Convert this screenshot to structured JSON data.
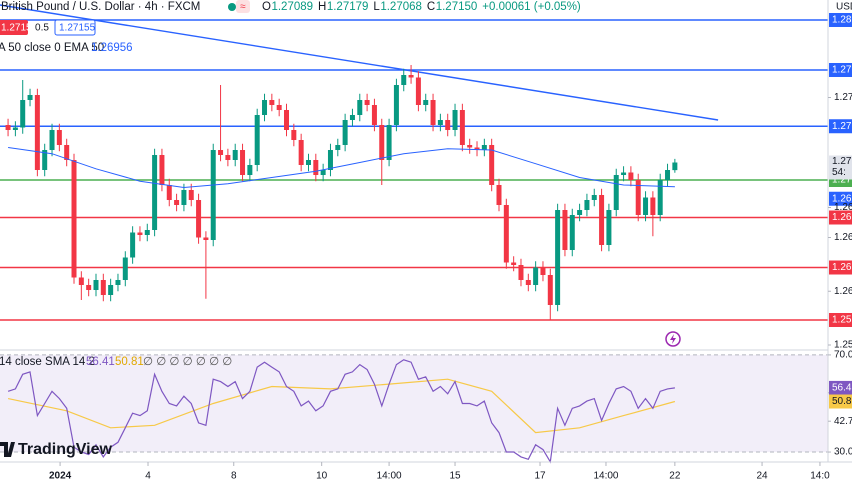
{
  "header": {
    "symbol": "British Pound / U.S. Dollar · 4h · FXCM",
    "ohlc_letters": [
      "O",
      "H",
      "L",
      "C"
    ],
    "ohlc": [
      "1.27089",
      "1.27179",
      "1.27068",
      "1.27150"
    ],
    "change": "+0.00061 (+0.05%)",
    "sell": "1.27150",
    "spread": "0.5",
    "buy": "1.27155",
    "ema_legend": "A 50 close 0 EMA 50",
    "ema_value": "1.26956",
    "currency": "USD",
    "logo": "TradingView"
  },
  "chart_data": {
    "type": "candlestick",
    "xlim": [
      -1.1,
      111.9
    ],
    "ylim": [
      1.2565,
      1.2845
    ],
    "xticks": [
      {
        "value": 7.1,
        "label": "2024"
      },
      {
        "value": 19.1,
        "label": "4"
      },
      {
        "value": 30.8,
        "label": "8"
      },
      {
        "value": 42.8,
        "label": "10"
      },
      {
        "value": 52,
        "label": "14:00"
      },
      {
        "value": 61,
        "label": "15"
      },
      {
        "value": 72.6,
        "label": "17"
      },
      {
        "value": 81.6,
        "label": "14:00"
      },
      {
        "value": 91,
        "label": "22"
      },
      {
        "value": 102.9,
        "label": "24"
      },
      {
        "value": 110.8,
        "label": "14:0"
      }
    ],
    "yticks": [
      {
        "value": 1.2767,
        "label": "1.27"
      },
      {
        "value": 1.2679,
        "label": "1.26"
      },
      {
        "value": 1.2655,
        "label": "1.26"
      },
      {
        "value": 1.2612,
        "label": "1.26"
      },
      {
        "value": 1.2569,
        "label": "1.25"
      }
    ],
    "up_color": "#089981",
    "down_color": "#f23645",
    "open": [
      1.2745,
      1.2741,
      1.2743,
      1.2765,
      1.2769,
      1.2709,
      1.2725,
      1.2741,
      1.2729,
      1.2717,
      1.2623,
      1.2617,
      1.2613,
      1.2621,
      1.2609,
      1.2617,
      1.2621,
      1.2639,
      1.2659,
      1.2657,
      1.2661,
      1.2721,
      1.2697,
      1.2685,
      1.2681,
      1.2693,
      1.2685,
      1.2655,
      1.2653,
      1.2725,
      1.2721,
      1.2717,
      1.2725,
      1.2705,
      1.2713,
      1.2753,
      1.2765,
      1.2761,
      1.2757,
      1.2741,
      1.2733,
      1.2713,
      1.2717,
      1.2705,
      1.2709,
      1.2725,
      1.2729,
      1.2749,
      1.2753,
      1.2765,
      1.2761,
      1.2745,
      1.2717,
      1.2745,
      1.2777,
      1.2785,
      1.2783,
      1.2761,
      1.2765,
      1.2745,
      1.2749,
      1.2741,
      1.2757,
      1.2729,
      1.2727,
      1.2725,
      1.2729,
      1.2697,
      1.2681,
      1.2635,
      1.2633,
      1.2621,
      1.2617,
      1.2631,
      1.2625,
      1.2601,
      1.2677,
      1.2645,
      1.2673,
      1.2677,
      1.2685,
      1.2689,
      1.2649,
      1.2677,
      1.2705,
      1.2707,
      1.2701,
      1.2673,
      1.2687,
      1.2673,
      1.2701,
      1.27089
    ],
    "high": [
      1.275,
      1.2748,
      1.2781,
      1.2774,
      1.2774,
      1.273,
      1.2746,
      1.2746,
      1.2734,
      1.2722,
      1.2628,
      1.2622,
      1.2626,
      1.2626,
      1.2622,
      1.2626,
      1.2644,
      1.2664,
      1.2664,
      1.2666,
      1.2726,
      1.2726,
      1.2702,
      1.269,
      1.2698,
      1.2698,
      1.269,
      1.266,
      1.273,
      1.2777,
      1.2726,
      1.273,
      1.273,
      1.2718,
      1.2758,
      1.277,
      1.277,
      1.2766,
      1.2762,
      1.2746,
      1.2738,
      1.2722,
      1.2722,
      1.2714,
      1.273,
      1.2734,
      1.2754,
      1.2758,
      1.277,
      1.277,
      1.2766,
      1.275,
      1.275,
      1.2782,
      1.279,
      1.2793,
      1.2788,
      1.277,
      1.277,
      1.2754,
      1.2754,
      1.2762,
      1.2762,
      1.2734,
      1.2732,
      1.2734,
      1.2734,
      1.2702,
      1.2686,
      1.264,
      1.2638,
      1.2626,
      1.2636,
      1.2636,
      1.263,
      1.2682,
      1.2682,
      1.2678,
      1.2682,
      1.269,
      1.2694,
      1.2694,
      1.2682,
      1.271,
      1.2712,
      1.2712,
      1.2706,
      1.2692,
      1.2692,
      1.2706,
      1.2714,
      1.27179
    ],
    "low": [
      1.2736,
      1.2736,
      1.2738,
      1.276,
      1.2704,
      1.2704,
      1.272,
      1.2724,
      1.2712,
      1.2618,
      1.2605,
      1.2608,
      1.2608,
      1.2604,
      1.2604,
      1.2612,
      1.2616,
      1.2634,
      1.2652,
      1.2652,
      1.2656,
      1.2692,
      1.268,
      1.2676,
      1.2676,
      1.268,
      1.265,
      1.2606,
      1.2648,
      1.2716,
      1.2712,
      1.2712,
      1.27,
      1.27,
      1.2708,
      1.2748,
      1.2756,
      1.2752,
      1.2736,
      1.2728,
      1.2708,
      1.2708,
      1.27,
      1.27,
      1.2704,
      1.272,
      1.2724,
      1.2744,
      1.2748,
      1.2756,
      1.274,
      1.2697,
      1.2712,
      1.274,
      1.2772,
      1.2778,
      1.2756,
      1.2756,
      1.274,
      1.274,
      1.2736,
      1.2736,
      1.2724,
      1.2722,
      1.272,
      1.272,
      1.2692,
      1.2676,
      1.263,
      1.2628,
      1.2616,
      1.2612,
      1.2612,
      1.262,
      1.2589,
      1.2596,
      1.264,
      1.264,
      1.2668,
      1.2672,
      1.268,
      1.2644,
      1.2644,
      1.2672,
      1.27,
      1.2696,
      1.2668,
      1.2668,
      1.2656,
      1.2668,
      1.2696,
      1.27068
    ],
    "close": [
      1.2741,
      1.2743,
      1.2765,
      1.2769,
      1.2709,
      1.2725,
      1.2741,
      1.2729,
      1.2717,
      1.2623,
      1.2617,
      1.2613,
      1.2621,
      1.2609,
      1.2617,
      1.2621,
      1.2639,
      1.2659,
      1.2657,
      1.2661,
      1.2721,
      1.2697,
      1.2685,
      1.2681,
      1.2693,
      1.2685,
      1.2655,
      1.2653,
      1.2725,
      1.2721,
      1.2717,
      1.2725,
      1.2705,
      1.2713,
      1.2753,
      1.2765,
      1.2761,
      1.2757,
      1.2741,
      1.2733,
      1.2713,
      1.2717,
      1.2705,
      1.2709,
      1.2725,
      1.2729,
      1.2749,
      1.2753,
      1.2765,
      1.2761,
      1.2745,
      1.2717,
      1.2745,
      1.2777,
      1.2785,
      1.2783,
      1.2761,
      1.2765,
      1.2745,
      1.2749,
      1.2741,
      1.2757,
      1.2729,
      1.2727,
      1.2725,
      1.2729,
      1.2697,
      1.2681,
      1.2635,
      1.2633,
      1.2621,
      1.2617,
      1.2631,
      1.2625,
      1.2601,
      1.2677,
      1.2645,
      1.2673,
      1.2677,
      1.2685,
      1.2689,
      1.2649,
      1.2677,
      1.2705,
      1.2707,
      1.2701,
      1.2673,
      1.2687,
      1.2673,
      1.2701,
      1.2709,
      1.2715
    ],
    "price_badge": {
      "label": "1.27",
      "countdown": "54:"
    },
    "ema": {
      "color": "#2962ff",
      "label": "1.26",
      "x": [
        0,
        6,
        12,
        18,
        24,
        30,
        36,
        42,
        48,
        54,
        60,
        66,
        72,
        78,
        84,
        91
      ],
      "values": [
        1.2727,
        1.2722,
        1.271,
        1.27,
        1.2695,
        1.2698,
        1.2703,
        1.2708,
        1.2715,
        1.2722,
        1.2726,
        1.2725,
        1.2714,
        1.2703,
        1.2697,
        1.26956
      ]
    },
    "trendline": {
      "color": "#2962ff",
      "x": [
        -1.1,
        96.9
      ],
      "values": [
        1.2841,
        1.2749
      ]
    },
    "levels": [
      {
        "value": 1.2829,
        "color": "#2962ff",
        "label": "1.28"
      },
      {
        "value": 1.2789,
        "color": "#2962ff",
        "label": "1.27"
      },
      {
        "value": 1.2744,
        "color": "#2962ff",
        "label": "1.27"
      },
      {
        "value": 1.2701,
        "color": "#4caf50",
        "label": "1.27"
      },
      {
        "value": 1.2671,
        "color": "#f23645",
        "label": "1.26"
      },
      {
        "value": 1.2631,
        "color": "#f23645",
        "label": "1.26"
      },
      {
        "value": 1.2589,
        "color": "#f23645",
        "label": "1.25"
      }
    ],
    "rsi": {
      "legend": "14 close SMA 14 2",
      "rsi_value": "56.41",
      "ma_value": "50.81",
      "empty": "∅ ∅ ∅ ∅ ∅ ∅ ∅",
      "ylim": [
        25.9,
        71.2
      ],
      "yticks": [
        {
          "value": 70,
          "label": "70.00"
        },
        {
          "value": 54.4,
          "label": "54.4"
        },
        {
          "value": 42.7,
          "label": "42.7"
        },
        {
          "value": 30,
          "label": "30.0"
        }
      ],
      "color": "#7e57c2",
      "ma_color": "#f7c948",
      "values": [
        55,
        56,
        62,
        63,
        45,
        50,
        55,
        52,
        48,
        32,
        30,
        29,
        33,
        28,
        32,
        34,
        40,
        46,
        45,
        47,
        62,
        55,
        50,
        49,
        53,
        50,
        42,
        41,
        60,
        59,
        57,
        59,
        52,
        55,
        65,
        67,
        65,
        63,
        57,
        55,
        49,
        51,
        47,
        49,
        55,
        56,
        62,
        63,
        66,
        64,
        58,
        49,
        58,
        66,
        68,
        67,
        60,
        61,
        55,
        57,
        54,
        59,
        50,
        50,
        49,
        51,
        42,
        38,
        30,
        30,
        28,
        27,
        33,
        31,
        26,
        48,
        41,
        48,
        49,
        51,
        52,
        43,
        50,
        56,
        57,
        55,
        48,
        52,
        48,
        55,
        56,
        56.41
      ],
      "value_label": "56.4",
      "ma_x": [
        0,
        8,
        14,
        20,
        28,
        36,
        44,
        52,
        60,
        66,
        72,
        78,
        84,
        91
      ],
      "ma_values": [
        52,
        47,
        40,
        41,
        50,
        57,
        56,
        58,
        60,
        55,
        38,
        40,
        45,
        50.81
      ],
      "ma_label": "50.8"
    }
  }
}
